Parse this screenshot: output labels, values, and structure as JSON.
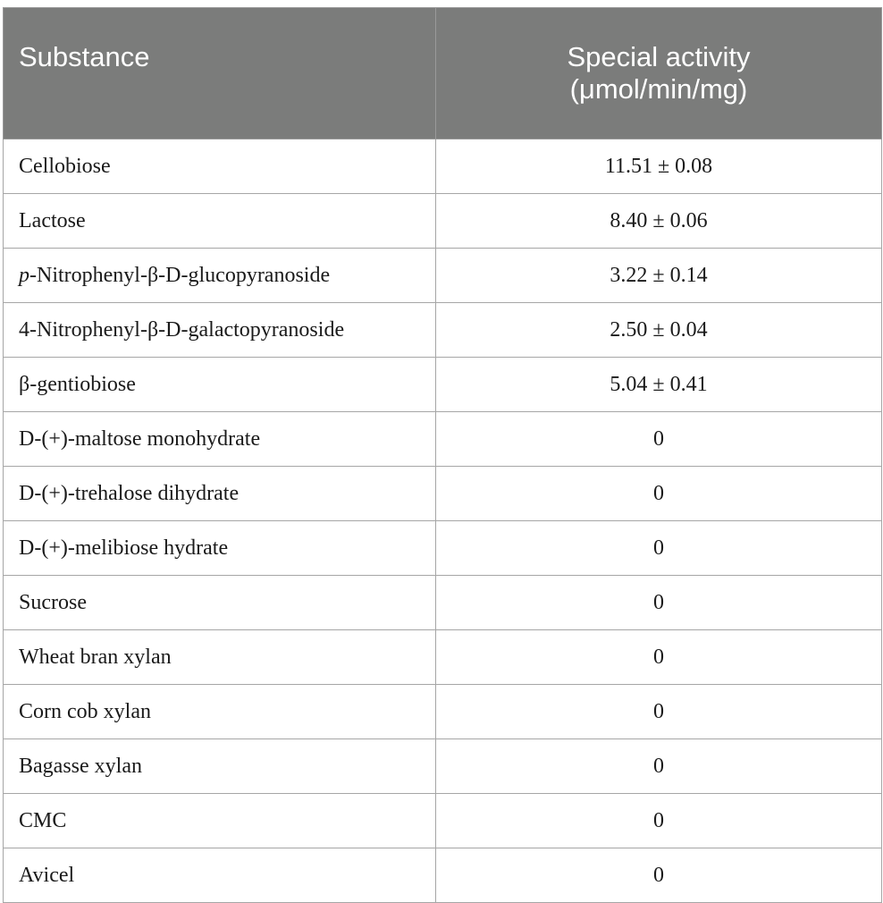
{
  "table": {
    "headers": {
      "substance": "Substance",
      "activity_line1": "Special activity",
      "activity_line2": "(μmol/min/mg)"
    },
    "rows": [
      {
        "substance_prefix": "",
        "substance": "Cellobiose",
        "activity": "11.51 ± 0.08"
      },
      {
        "substance_prefix": "",
        "substance": "Lactose",
        "activity": "8.40 ± 0.06"
      },
      {
        "substance_prefix": "p",
        "substance": "-Nitrophenyl-β-D-glucopyranoside",
        "activity": "3.22 ± 0.14"
      },
      {
        "substance_prefix": "",
        "substance": "4-Nitrophenyl-β-D-galactopyranoside",
        "activity": "2.50 ± 0.04"
      },
      {
        "substance_prefix": "",
        "substance": "β-gentiobiose",
        "activity": "5.04 ± 0.41"
      },
      {
        "substance_prefix": "",
        "substance": "D-(+)-maltose monohydrate",
        "activity": "0"
      },
      {
        "substance_prefix": "",
        "substance": "D-(+)-trehalose dihydrate",
        "activity": "0"
      },
      {
        "substance_prefix": "",
        "substance": "D-(+)-melibiose hydrate",
        "activity": "0"
      },
      {
        "substance_prefix": "",
        "substance": "Sucrose",
        "activity": "0"
      },
      {
        "substance_prefix": "",
        "substance": "Wheat bran xylan",
        "activity": "0"
      },
      {
        "substance_prefix": "",
        "substance": "Corn cob xylan",
        "activity": "0"
      },
      {
        "substance_prefix": "",
        "substance": "Bagasse xylan",
        "activity": "0"
      },
      {
        "substance_prefix": "",
        "substance": "CMC",
        "activity": "0"
      },
      {
        "substance_prefix": "",
        "substance": "Avicel",
        "activity": "0"
      }
    ]
  },
  "colors": {
    "header_background": "#7b7c7b",
    "header_text": "#ffffff",
    "grid_line": "#a6a6a6"
  }
}
